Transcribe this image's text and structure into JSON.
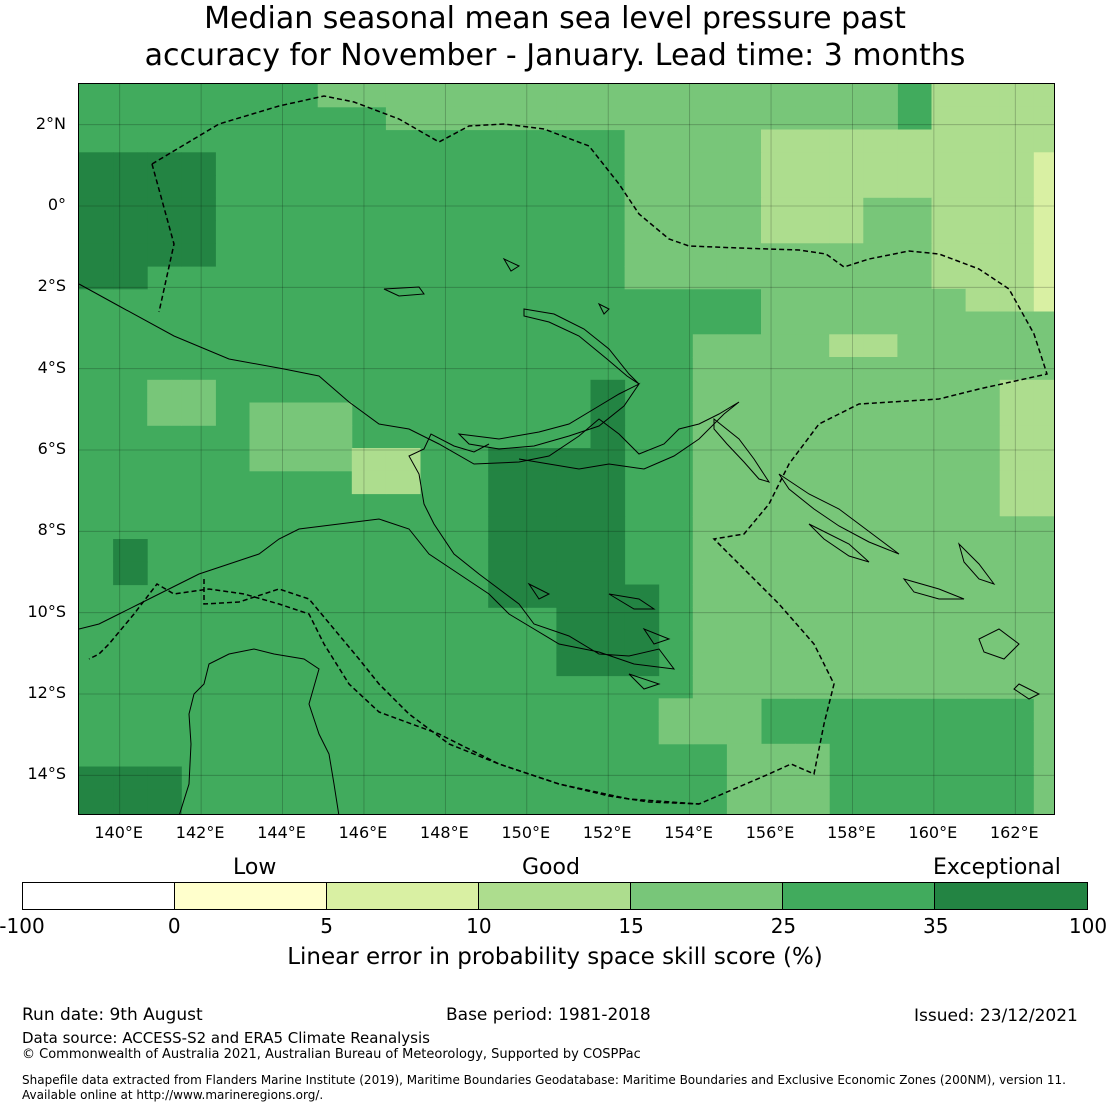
{
  "title": {
    "line1": "Median seasonal mean sea level pressure past",
    "line2": "accuracy for November - January. Lead time: 3 months"
  },
  "map": {
    "lon_range": [
      139,
      163
    ],
    "lat_range": [
      -15,
      3
    ],
    "lon_ticks": [
      "140°E",
      "142°E",
      "144°E",
      "146°E",
      "148°E",
      "150°E",
      "152°E",
      "154°E",
      "156°E",
      "158°E",
      "160°E",
      "162°E"
    ],
    "lat_ticks": [
      "2°N",
      "0°",
      "2°S",
      "4°S",
      "6°S",
      "8°S",
      "10°S",
      "12°S",
      "14°S"
    ],
    "gridlines": true,
    "grid_resolution_deg": 0.833,
    "background_category": "25-35"
  },
  "colorbar": {
    "category_labels": [
      "Low",
      "Good",
      "Exceptional"
    ],
    "tick_labels": [
      "-100",
      "0",
      "5",
      "10",
      "15",
      "25",
      "35",
      "100"
    ],
    "label": "Linear error in probability space skill score (%)",
    "classes": [
      {
        "range": "-100 to 0",
        "color": "#ffffff"
      },
      {
        "range": "0 to 5",
        "color": "#ffffcc"
      },
      {
        "range": "5 to 10",
        "color": "#d9f0a3"
      },
      {
        "range": "10 to 15",
        "color": "#addd8e"
      },
      {
        "range": "15 to 25",
        "color": "#78c679"
      },
      {
        "range": "25 to 35",
        "color": "#41ab5d"
      },
      {
        "range": "35 to 100",
        "color": "#238443"
      }
    ]
  },
  "skill_regions": [
    {
      "name": "northwest-exceptional",
      "category": "35-100"
    },
    {
      "name": "central-exceptional",
      "category": "35-100"
    },
    {
      "name": "north-good",
      "category": "15-25"
    },
    {
      "name": "northeast-good",
      "category": "10-15"
    },
    {
      "name": "east-fair",
      "category": "5-10"
    },
    {
      "name": "southeast-good",
      "category": "15-25"
    }
  ],
  "footer": {
    "run_date": "Run date: 9th August",
    "base_period": "Base period: 1981-2018",
    "issued": "Issued: 23/12/2021",
    "data_source": "Data source: ACCESS-S2 and ERA5 Climate Reanalysis",
    "copyright": "© Commonwealth of Australia 2021, Australian Bureau of Meteorology, Supported by COSPPac",
    "shapefile_line1": "Shapefile data extracted from Flanders Marine Institute (2019), Maritime Boundaries Geodatabase: Maritime Boundaries and Exclusive Economic Zones (200NM), version 11.",
    "shapefile_line2": "Available online at http://www.marineregions.org/."
  }
}
